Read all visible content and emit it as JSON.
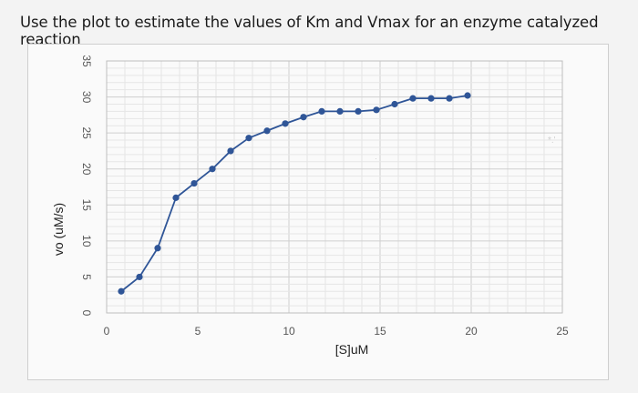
{
  "question": "Use the plot to estimate the values of Km and Vmax for an enzyme catalyzed reaction",
  "chart_data": {
    "type": "line",
    "title": "",
    "xlabel": "[S]uM",
    "ylabel": "vo (uM/s)",
    "xlim": [
      0,
      25
    ],
    "ylim": [
      0,
      35
    ],
    "x_ticks": [
      "0",
      "5",
      "10",
      "15",
      "20",
      "25"
    ],
    "y_ticks": [
      "0",
      "5",
      "10",
      "15",
      "20",
      "25",
      "30",
      "35"
    ],
    "grid": true,
    "legend": "none",
    "series": [
      {
        "color": "#2f5597",
        "x": [
          0.8,
          1.8,
          2.8,
          3.8,
          4.8,
          5.8,
          6.8,
          7.8,
          8.8,
          9.8,
          10.8,
          11.8,
          12.8,
          13.8,
          14.8,
          15.8,
          16.8,
          17.8,
          18.8,
          19.8
        ],
        "y": [
          3,
          5,
          9,
          16,
          18,
          20,
          22.5,
          24.3,
          25.3,
          26.3,
          27.2,
          28,
          28,
          28,
          28.2,
          29,
          29.8,
          29.8,
          29.8,
          30.2
        ]
      }
    ]
  }
}
